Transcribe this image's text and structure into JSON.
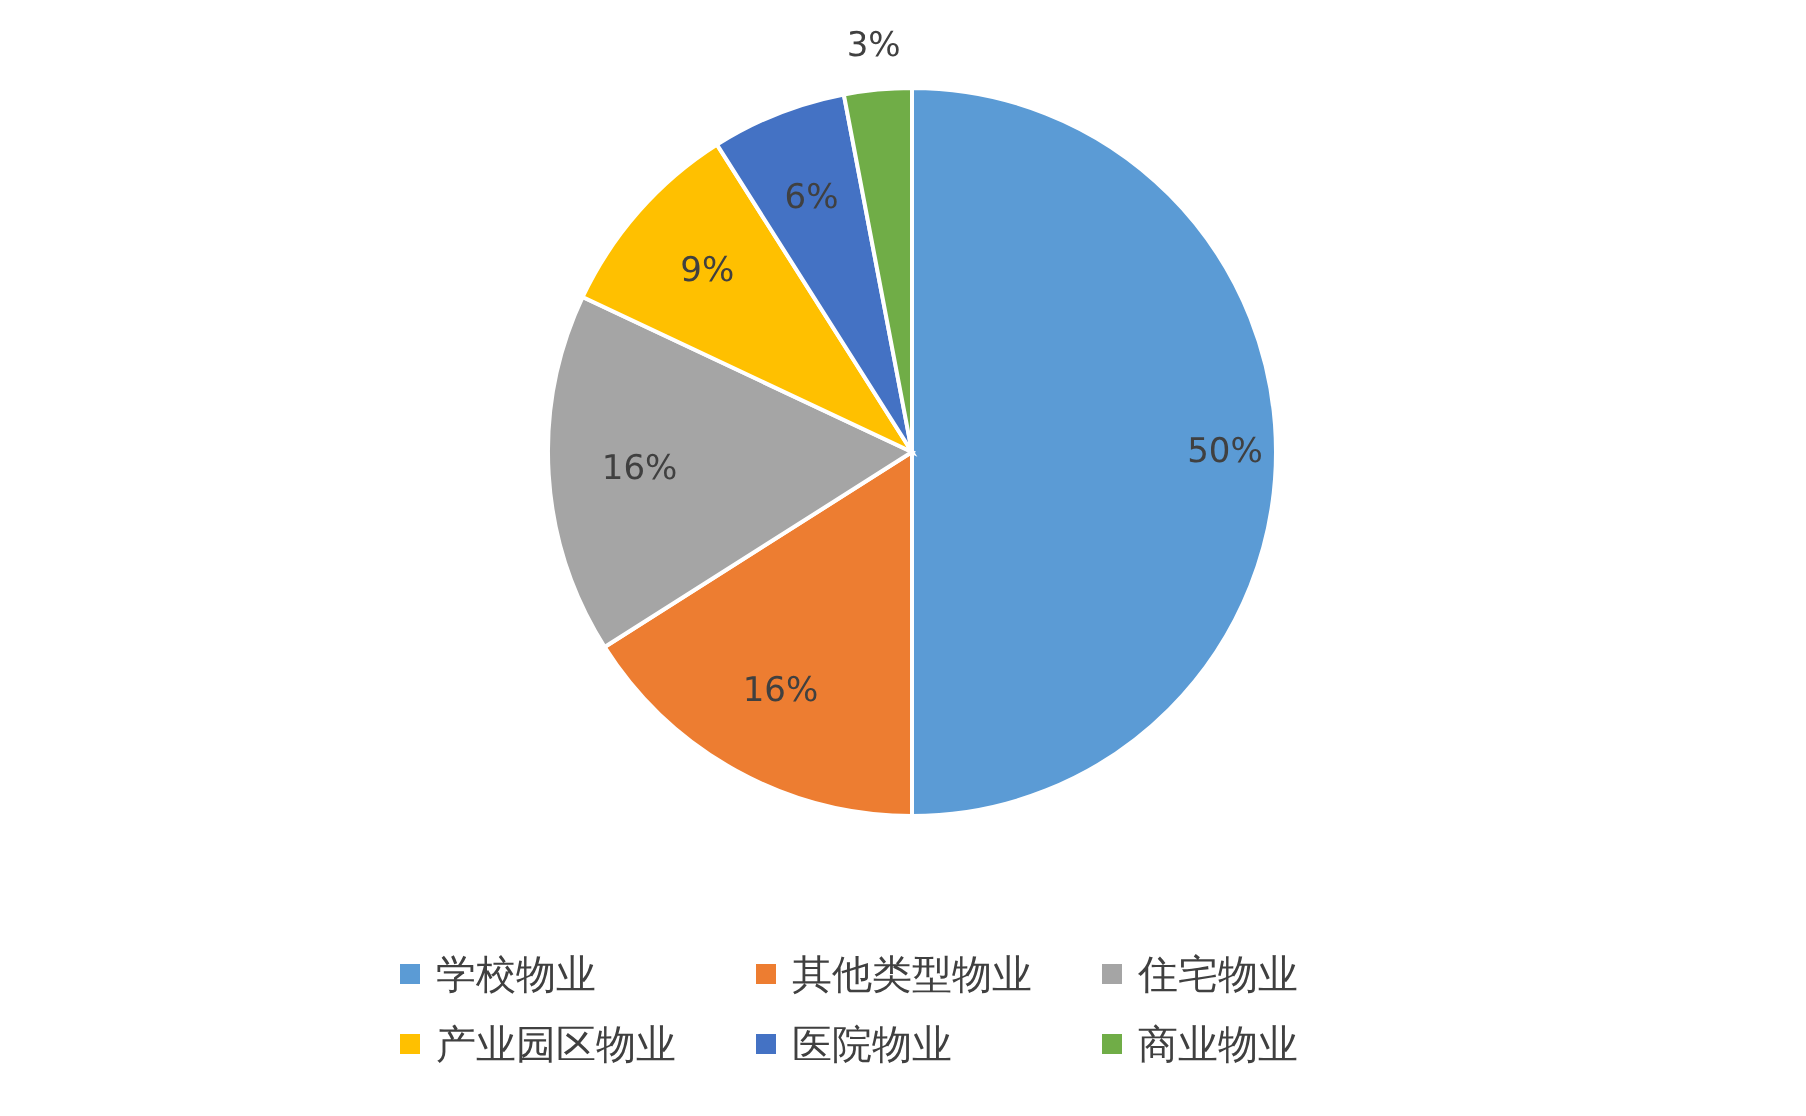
{
  "chart_data": {
    "type": "pie",
    "categories": [
      "学校物业",
      "其他类型物业",
      "住宅物业",
      "产业园区物业",
      "医院物业",
      "商业物业"
    ],
    "values": [
      50,
      16,
      16,
      9,
      6,
      3
    ],
    "colors": [
      "#5b9bd5",
      "#ed7d31",
      "#a5a5a5",
      "#ffc000",
      "#4472c4",
      "#70ad47"
    ],
    "data_labels": true,
    "value_labels": [
      "50%",
      "16%",
      "16%",
      "9%",
      "6%",
      "3%"
    ],
    "legend": "bottom"
  }
}
